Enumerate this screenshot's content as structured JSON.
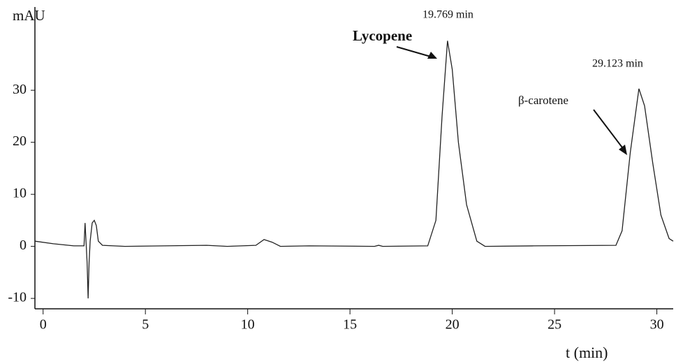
{
  "chart_data": {
    "type": "line",
    "y_label": "mAU",
    "x_label": "t (min)",
    "annotations": [
      "Lycopene",
      "19.769 min",
      "β-carotene",
      "29.123 min"
    ],
    "x": [
      -0.4,
      0.5,
      1.5,
      2.0,
      2.05,
      2.15,
      2.2,
      2.25,
      2.3,
      2.4,
      2.5,
      2.6,
      2.7,
      2.9,
      4,
      8,
      9,
      10.4,
      10.8,
      11.2,
      11.6,
      13,
      16.2,
      16.4,
      16.6,
      18.8,
      19.2,
      19.5,
      19.769,
      20,
      20.3,
      20.7,
      21.2,
      21.6,
      24,
      28,
      28.3,
      28.7,
      29.123,
      29.4,
      29.8,
      30.2,
      30.6,
      30.8
    ],
    "series": [
      {
        "color": "#222222",
        "values": [
          1.0,
          0.5,
          0.1,
          0.1,
          4.5,
          -3,
          -10,
          -3,
          1,
          4.5,
          5,
          4,
          1,
          0.2,
          0,
          0.2,
          0,
          0.2,
          1.3,
          0.8,
          0,
          0.1,
          0,
          0.2,
          0,
          0.1,
          5,
          25,
          39.5,
          34,
          20,
          8,
          1,
          0,
          0.1,
          0.2,
          3,
          18,
          30.3,
          27,
          16,
          6,
          1.5,
          1
        ]
      }
    ],
    "xlim": [
      -0.4,
      30.8
    ],
    "xticks": [
      0,
      5,
      10,
      15,
      20,
      25,
      30
    ],
    "ylim": [
      -12,
      46
    ],
    "yticks": [
      -10,
      0,
      10,
      20,
      30
    ]
  }
}
